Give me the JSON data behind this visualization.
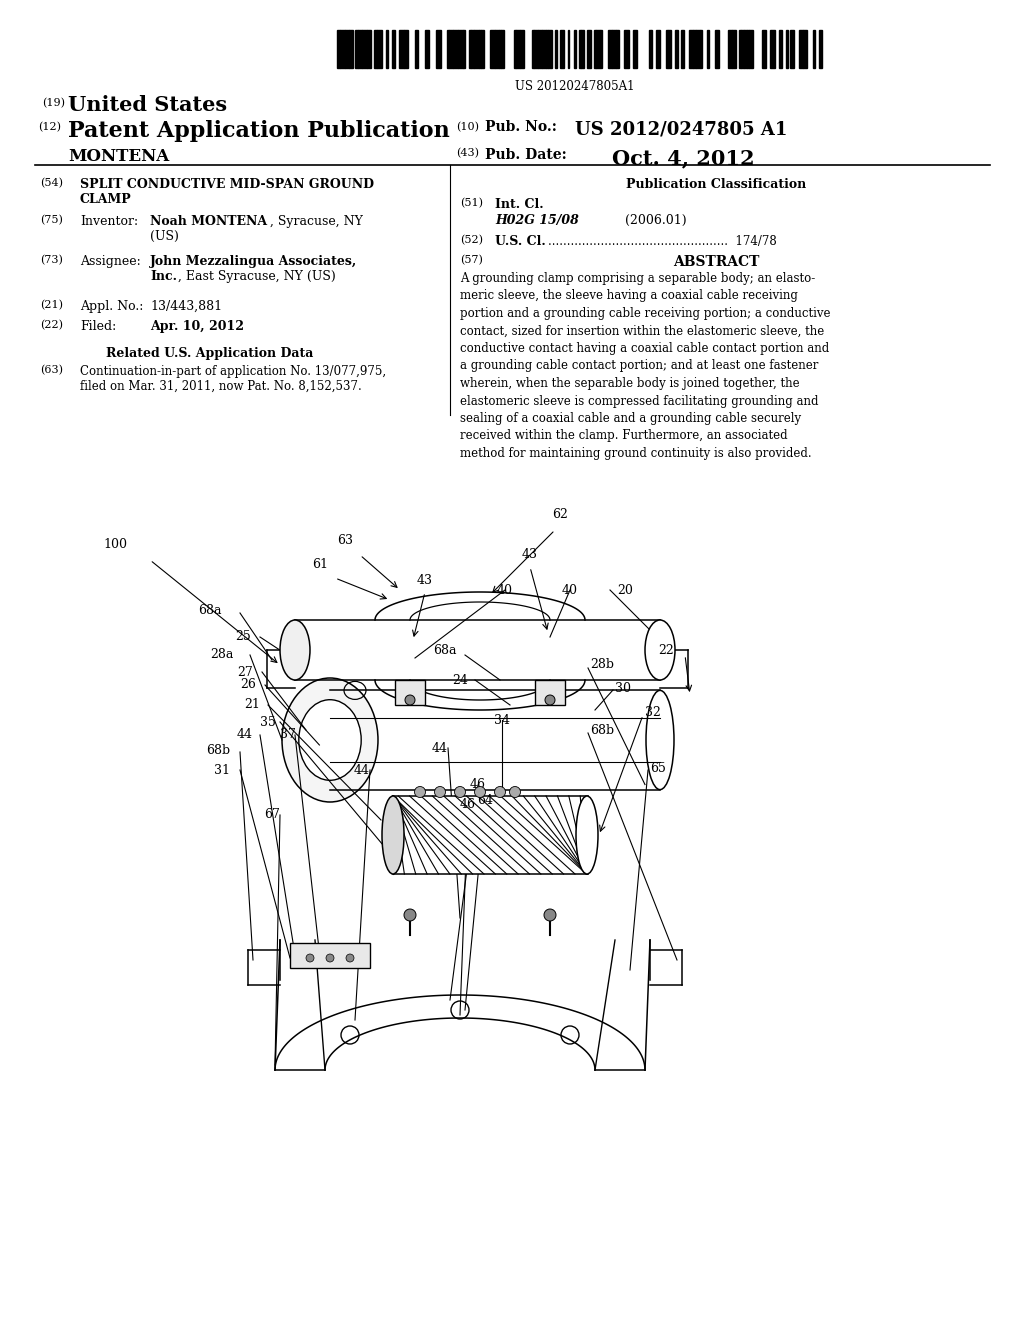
{
  "background_color": "#ffffff",
  "barcode_text": "US 20120247805A1",
  "page_width": 1.0,
  "page_height": 1.0,
  "header": {
    "number_19": "(19)",
    "title_19": "United States",
    "number_12": "(12)",
    "title_12": "Patent Application Publication",
    "assignee_name": "MONTENA",
    "number_10": "(10)",
    "pub_no_label": "Pub. No.:",
    "pub_no_value": "US 2012/0247805 A1",
    "number_43": "(43)",
    "pub_date_label": "Pub. Date:",
    "pub_date_value": "Oct. 4, 2012"
  },
  "left_col": {
    "item54_num": "(54)",
    "item54_title": "SPLIT CONDUCTIVE MID-SPAN GROUND\nCLAMP",
    "item75_num": "(75)",
    "item75_label": "Inventor:",
    "item75_value": "Noah MONTENA, Syracuse, NY\n(US)",
    "item73_num": "(73)",
    "item73_label": "Assignee:",
    "item73_value": "John Mezzalingua Associates,\nInc., East Syracuse, NY (US)",
    "item21_num": "(21)",
    "item21_label": "Appl. No.:",
    "item21_value": "13/443,881",
    "item22_num": "(22)",
    "item22_label": "Filed:",
    "item22_value": "Apr. 10, 2012",
    "related_title": "Related U.S. Application Data",
    "item63_num": "(63)",
    "item63_value": "Continuation-in-part of application No. 13/077,975,\nfiled on Mar. 31, 2011, now Pat. No. 8,152,537."
  },
  "right_col": {
    "pub_class_title": "Publication Classification",
    "item51_num": "(51)",
    "item51_label": "Int. Cl.",
    "item51_class": "H02G 15/08",
    "item51_year": "(2006.01)",
    "item52_num": "(52)",
    "item52_label": "U.S. Cl.",
    "item52_value": "174/78",
    "item57_num": "(57)",
    "item57_title": "ABSTRACT",
    "abstract_text": "A grounding clamp comprising a separable body; an elasto-\nmeric sleeve, the sleeve having a coaxial cable receiving\nportion and a grounding cable receiving portion; a conductive\ncontact, sized for insertion within the elastomeric sleeve, the\nconductive contact having a coaxial cable contact portion and\na grounding cable contact portion; and at least one fastener\nwherein, when the separable body is joined together, the\nelastomeric sleeve is compressed facilitating grounding and\nsealing of a coaxial cable and a grounding cable securely\nreceived within the clamp. Furthermore, an associated\nmethod for maintaining ground continuity is also provided."
  }
}
